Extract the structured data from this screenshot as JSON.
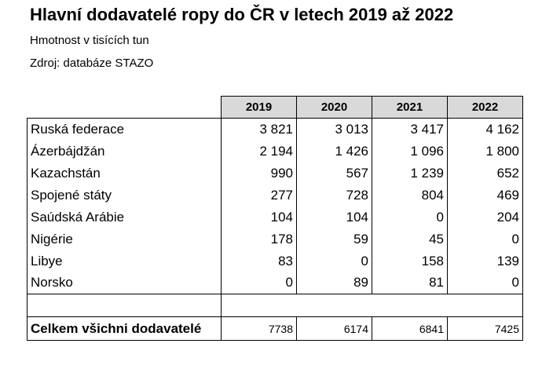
{
  "header": {
    "title": "Hlavní dodavatelé ropy do ČR v letech 2019 až 2022",
    "subtitle": "Hmotnost v tisících tun",
    "source": "Zdroj: databáze STAZO"
  },
  "table": {
    "years": [
      "2019",
      "2020",
      "2021",
      "2022"
    ],
    "rows": [
      {
        "country": "Ruská federace",
        "values": [
          "3 821",
          "3 013",
          "3 417",
          "4 162"
        ]
      },
      {
        "country": "Ázerbájdžán",
        "values": [
          "2 194",
          "1 426",
          "1 096",
          "1 800"
        ]
      },
      {
        "country": "Kazachstán",
        "values": [
          "990",
          "567",
          "1 239",
          "652"
        ]
      },
      {
        "country": "Spojené státy",
        "values": [
          "277",
          "728",
          "804",
          "469"
        ]
      },
      {
        "country": "Saúdská Arábie",
        "values": [
          "104",
          "104",
          "0",
          "204"
        ]
      },
      {
        "country": "Nigérie",
        "values": [
          "178",
          "59",
          "45",
          "0"
        ]
      },
      {
        "country": "Libye",
        "values": [
          "83",
          "0",
          "158",
          "139"
        ]
      },
      {
        "country": "Norsko",
        "values": [
          "0",
          "89",
          "81",
          "0"
        ]
      }
    ],
    "total": {
      "label": "Celkem všichni dodavatelé",
      "values": [
        "7738",
        "6174",
        "6841",
        "7425"
      ]
    }
  }
}
